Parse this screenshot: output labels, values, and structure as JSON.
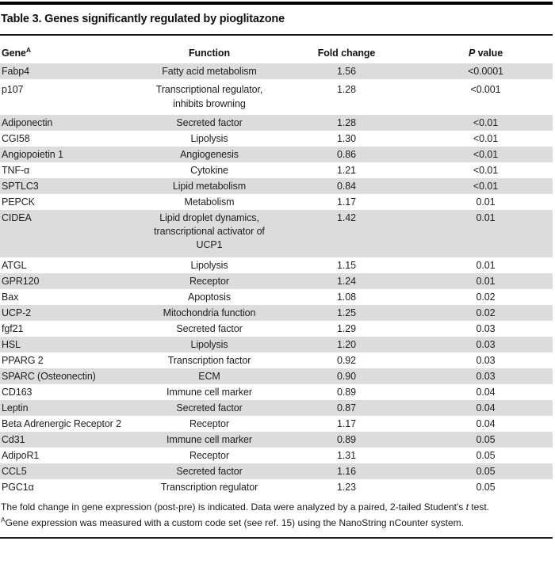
{
  "title": "Table 3. Genes significantly regulated by pioglitazone",
  "columns": {
    "gene_label": "Gene",
    "gene_sup": "A",
    "function_label": "Function",
    "fold_change_label": "Fold change",
    "p_italic": "P",
    "p_rest": " value"
  },
  "rows": [
    {
      "gene": "Fabp4",
      "function": "Fatty acid metabolism",
      "fold_change": "1.56",
      "p_value": "<0.0001"
    },
    {
      "gene": "p107",
      "function": "Transcriptional regulator,\ninhibits browning",
      "fold_change": "1.28",
      "p_value": "<0.001"
    },
    {
      "gene": "Adiponectin",
      "function": "Secreted factor",
      "fold_change": "1.28",
      "p_value": "<0.01"
    },
    {
      "gene": "CGI58",
      "function": "Lipolysis",
      "fold_change": "1.30",
      "p_value": "<0.01"
    },
    {
      "gene": "Angiopoietin 1",
      "function": "Angiogenesis",
      "fold_change": "0.86",
      "p_value": "<0.01"
    },
    {
      "gene": "TNF-α",
      "function": "Cytokine",
      "fold_change": "1.21",
      "p_value": "<0.01"
    },
    {
      "gene": "SPTLC3",
      "function": "Lipid metabolism",
      "fold_change": "0.84",
      "p_value": "<0.01"
    },
    {
      "gene": "PEPCK",
      "function": "Metabolism",
      "fold_change": "1.17",
      "p_value": "0.01"
    },
    {
      "gene": "CIDEA",
      "function": "Lipid droplet dynamics,\ntranscriptional activator of\nUCP1",
      "fold_change": "1.42",
      "p_value": "0.01"
    },
    {
      "gene": "ATGL",
      "function": "Lipolysis",
      "fold_change": "1.15",
      "p_value": "0.01"
    },
    {
      "gene": "GPR120",
      "function": "Receptor",
      "fold_change": "1.24",
      "p_value": "0.01"
    },
    {
      "gene": "Bax",
      "function": "Apoptosis",
      "fold_change": "1.08",
      "p_value": "0.02"
    },
    {
      "gene": "UCP-2",
      "function": "Mitochondria function",
      "fold_change": "1.25",
      "p_value": "0.02"
    },
    {
      "gene": "fgf21",
      "function": "Secreted factor",
      "fold_change": "1.29",
      "p_value": "0.03"
    },
    {
      "gene": "HSL",
      "function": "Lipolysis",
      "fold_change": "1.20",
      "p_value": "0.03"
    },
    {
      "gene": "PPARG 2",
      "function": "Transcription factor",
      "fold_change": "0.92",
      "p_value": "0.03"
    },
    {
      "gene": "SPARC (Osteonectin)",
      "function": "ECM",
      "fold_change": "0.90",
      "p_value": "0.03"
    },
    {
      "gene": "CD163",
      "function": "Immune cell marker",
      "fold_change": "0.89",
      "p_value": "0.04"
    },
    {
      "gene": "Leptin",
      "function": "Secreted factor",
      "fold_change": "0.87",
      "p_value": "0.04"
    },
    {
      "gene": "Beta Adrenergic Receptor 2",
      "function": "Receptor",
      "fold_change": "1.17",
      "p_value": "0.04"
    },
    {
      "gene": "Cd31",
      "function": "Immune cell marker",
      "fold_change": "0.89",
      "p_value": "0.05"
    },
    {
      "gene": "AdipoR1",
      "function": "Receptor",
      "fold_change": "1.31",
      "p_value": "0.05"
    },
    {
      "gene": "CCL5",
      "function": "Secreted factor",
      "fold_change": "1.16",
      "p_value": "0.05"
    },
    {
      "gene": "PGC1α",
      "function": "Transcription regulator",
      "fold_change": "1.23",
      "p_value": "0.05"
    }
  ],
  "footnotes": {
    "line1_pre": "The fold change in gene expression (post-pre) is indicated. Data were analyzed by a paired, 2-tailed Student's ",
    "line1_italic": "t",
    "line1_post": " test.",
    "line2_sup": "A",
    "line2_text": "Gene expression was measured with a custom code set (see ref. 15) using the NanoString nCounter system."
  },
  "colors": {
    "row_shade": "#dcdcdc",
    "rule": "#000000",
    "text": "#1e1e1e"
  }
}
